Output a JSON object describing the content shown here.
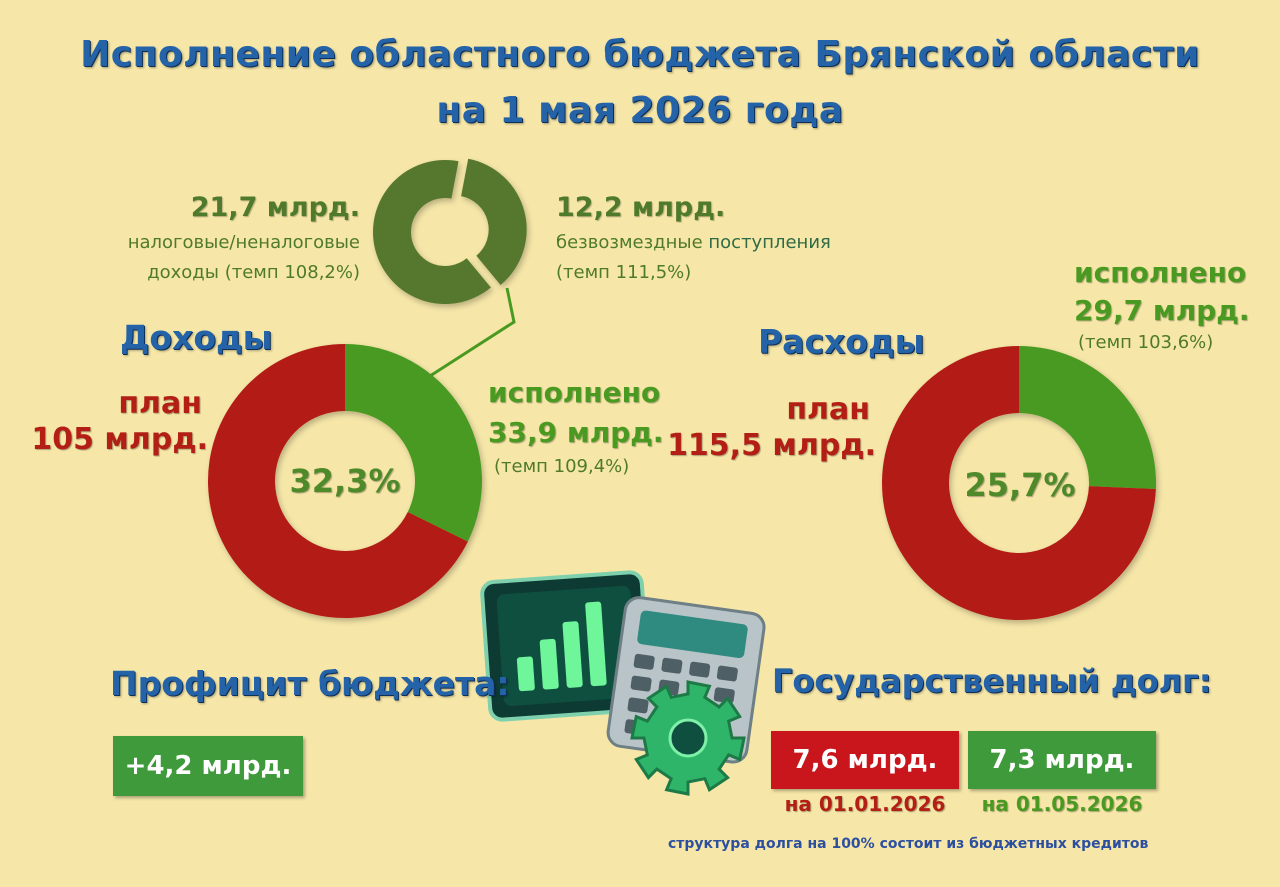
{
  "title": {
    "line1": "Исполнение областного бюджета Брянской области",
    "line2": "на 1 мая 2026 года"
  },
  "colors": {
    "background": "#f6e7a8",
    "title_blue": "#2463a8",
    "plan_red": "#b31f14",
    "executed_green": "#4a9a22",
    "dark_green": "#56782e"
  },
  "structure": {
    "tax_amount": "21,7 млрд.",
    "tax_label_1": "налоговые/неналоговые",
    "tax_label_2": "доходы (темп 108,2%)",
    "grant_amount": "12,2 млрд.",
    "grant_label_a": "безвозмездные ",
    "grant_label_b": "поступления",
    "grant_label_2": "(темп 111,5%)"
  },
  "income": {
    "heading": "Доходы",
    "plan_label": "план",
    "plan_amount": "105 млрд.",
    "executed_label": "исполнено",
    "executed_amount": "33,9 млрд.",
    "executed_rate": "(темп 109,4%)",
    "percent": "32,3%"
  },
  "expenses": {
    "heading": "Расходы",
    "plan_label": "план",
    "plan_amount": "115,5 млрд.",
    "executed_label": "исполнено",
    "executed_amount": "29,7 млрд.",
    "executed_rate": "(темп 103,6%)",
    "percent": "25,7%"
  },
  "surplus": {
    "heading": "Профицит бюджета:",
    "value": "+4,2 млрд."
  },
  "debt": {
    "heading": "Государственный долг:",
    "value_1": "7,6 млрд.",
    "date_1": "на 01.01.2026",
    "value_2": "7,3 млрд.",
    "date_2": "на 01.05.2026",
    "footnote": "структура долга на 100% состоит из бюджетных кредитов"
  },
  "icons": {
    "center": "bar-chart-calculator-gear-icon"
  },
  "chart_data": [
    {
      "type": "pie",
      "name": "structure",
      "values": [
        21.7,
        12.2
      ],
      "unit": "млрд."
    },
    {
      "type": "pie",
      "name": "income",
      "values": [
        32.3,
        67.7
      ],
      "unit": "%"
    },
    {
      "type": "pie",
      "name": "expenses",
      "values": [
        25.7,
        74.3
      ],
      "unit": "%"
    }
  ]
}
